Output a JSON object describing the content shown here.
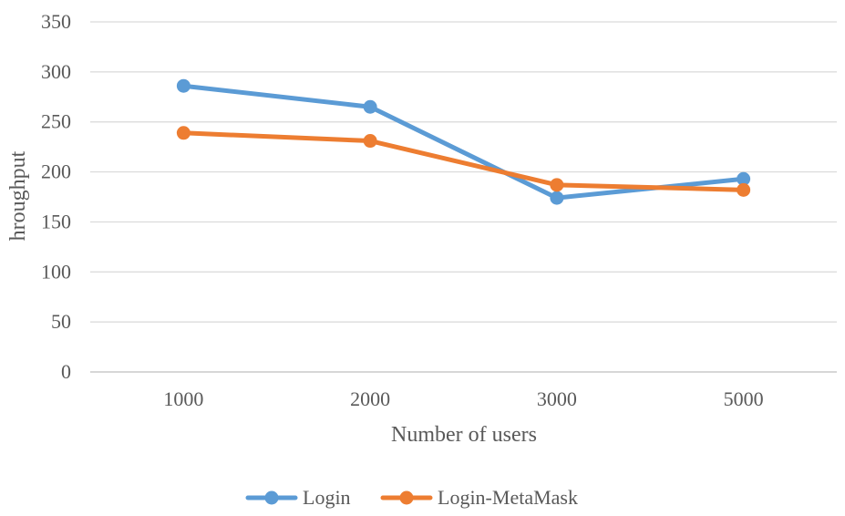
{
  "chart_data": {
    "type": "line",
    "title": "",
    "xlabel": "Number of users",
    "ylabel": "hroughput",
    "categories": [
      "1000",
      "2000",
      "3000",
      "5000"
    ],
    "yticks": [
      "0",
      "50",
      "100",
      "150",
      "200",
      "250",
      "300",
      "350"
    ],
    "ylim": [
      0,
      350
    ],
    "grid": true,
    "legend_position": "bottom",
    "series": [
      {
        "name": "Login",
        "color": "#5B9BD5",
        "values": [
          286,
          265,
          174,
          193
        ]
      },
      {
        "name": "Login-MetaMask",
        "color": "#ED7D31",
        "values": [
          239,
          231,
          187,
          182
        ]
      }
    ]
  }
}
